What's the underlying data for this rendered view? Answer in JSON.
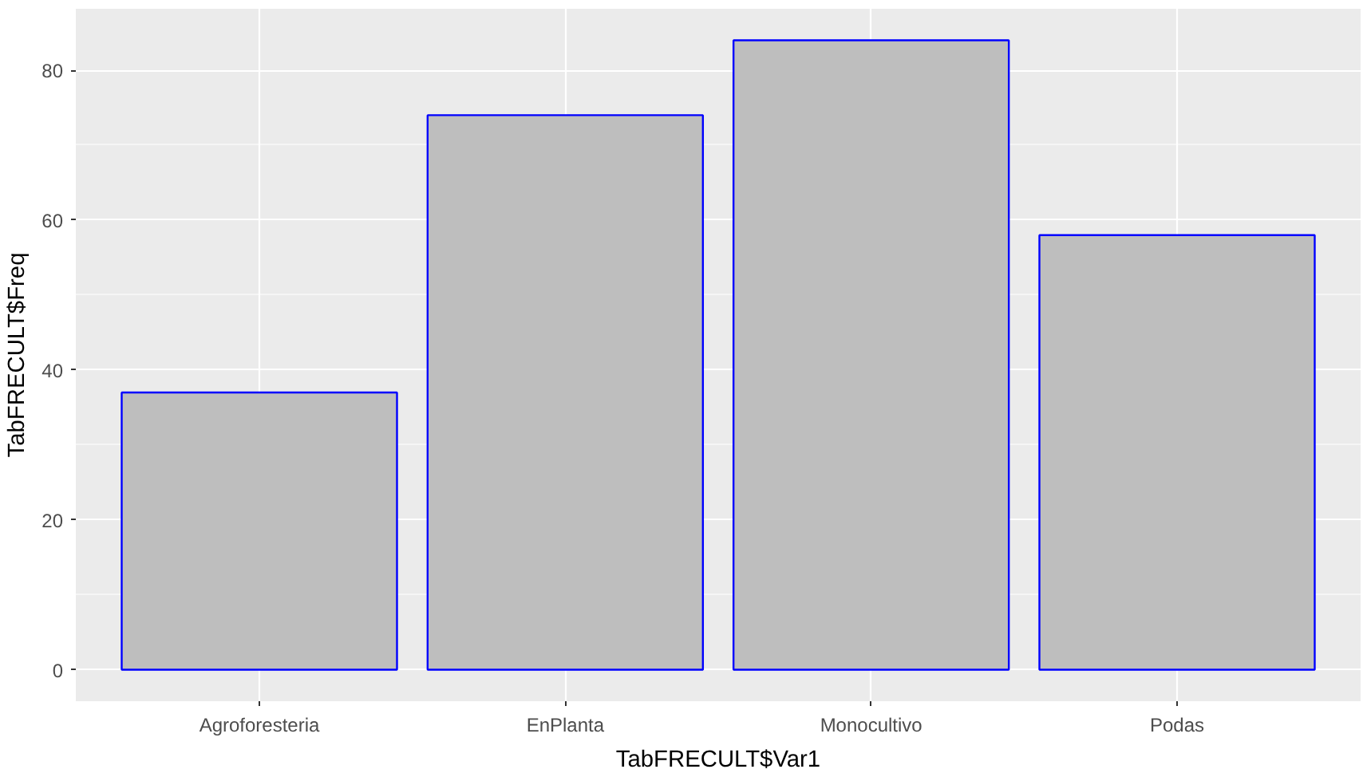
{
  "chart_data": {
    "type": "bar",
    "xlabel": "TabFRECULT$Var1",
    "ylabel": "TabFRECULT$Freq",
    "categories": [
      "Agroforesteria",
      "EnPlanta",
      "Monocultivo",
      "Podas"
    ],
    "values": [
      37,
      74,
      84,
      58
    ],
    "color": "#bebebe",
    "ylim": [
      -4.2,
      88.2
    ],
    "yticks": [
      0,
      20,
      40,
      60,
      80
    ],
    "grid": true
  }
}
